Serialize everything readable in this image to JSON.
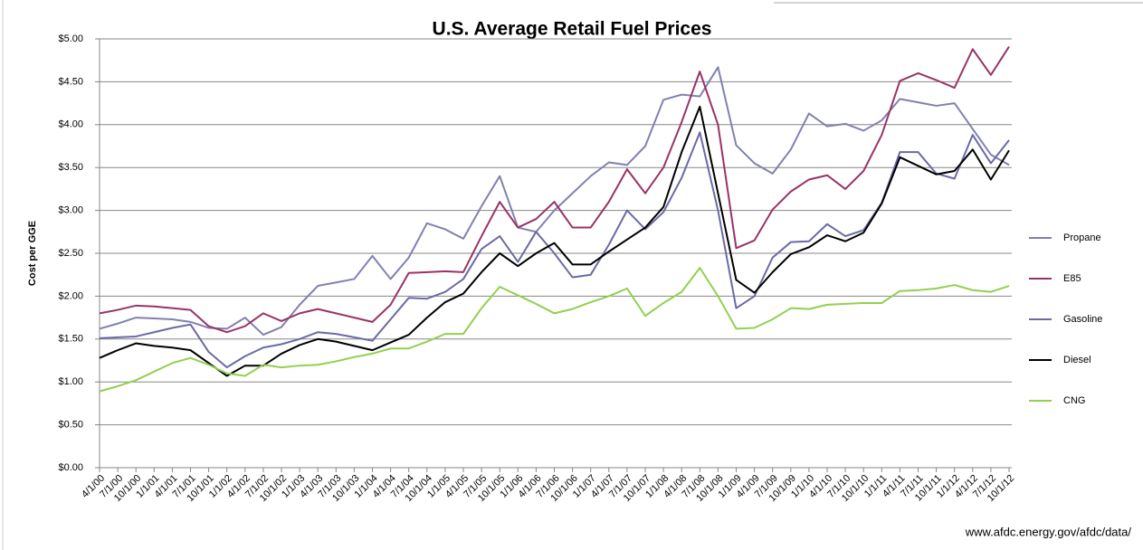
{
  "chart_data": {
    "type": "line",
    "title": "U.S. Average Retail Fuel Prices",
    "y_label": "Cost per GGE",
    "source": "www.afdc.energy.gov/afdc/data/",
    "categories": [
      "4/1/00",
      "7/1/00",
      "10/1/00",
      "1/1/01",
      "4/1/01",
      "7/1/01",
      "10/1/01",
      "1/1/02",
      "4/1/02",
      "7/1/02",
      "10/1/02",
      "1/1/03",
      "4/1/03",
      "7/1/03",
      "10/1/03",
      "1/1/04",
      "4/1/04",
      "7/1/04",
      "10/1/04",
      "1/1/05",
      "4/1/05",
      "7/1/05",
      "10/1/05",
      "1/1/06",
      "4/1/06",
      "7/1/06",
      "10/1/06",
      "1/1/07",
      "4/1/07",
      "7/1/07",
      "10/1/07",
      "1/1/08",
      "4/1/08",
      "7/1/08",
      "10/1/08",
      "1/1/09",
      "4/1/09",
      "7/1/09",
      "10/1/09",
      "1/1/10",
      "4/1/10",
      "7/1/10",
      "10/1/10",
      "1/1/11",
      "4/1/11",
      "7/1/11",
      "10/1/11",
      "1/1/12",
      "4/1/12",
      "7/1/12",
      "10/1/12"
    ],
    "series": [
      {
        "name": "Propane",
        "color": "#8080b2",
        "values": [
          1.62,
          1.68,
          1.75,
          1.74,
          1.73,
          1.7,
          1.63,
          1.62,
          1.75,
          1.55,
          1.64,
          1.9,
          2.12,
          2.16,
          2.2,
          2.47,
          2.2,
          2.45,
          2.85,
          2.78,
          2.67,
          3.05,
          3.4,
          2.8,
          2.75,
          3.0,
          3.2,
          3.4,
          3.56,
          3.53,
          3.75,
          4.29,
          4.35,
          4.33,
          4.67,
          3.76,
          3.55,
          3.43,
          3.71,
          4.13,
          3.98,
          4.01,
          3.93,
          4.05,
          4.3,
          4.26,
          4.22,
          4.25,
          3.95,
          3.65,
          3.53
        ]
      },
      {
        "name": "E85",
        "color": "#993366",
        "values": [
          1.8,
          1.84,
          1.89,
          1.88,
          1.86,
          1.84,
          1.65,
          1.58,
          1.65,
          1.8,
          1.71,
          1.8,
          1.85,
          1.8,
          1.75,
          1.7,
          1.9,
          2.27,
          2.28,
          2.29,
          2.28,
          2.7,
          3.1,
          2.8,
          2.9,
          3.1,
          2.8,
          2.8,
          3.1,
          3.48,
          3.2,
          3.5,
          4.03,
          4.62,
          4.0,
          2.56,
          2.65,
          3.01,
          3.22,
          3.36,
          3.41,
          3.25,
          3.46,
          3.88,
          4.51,
          4.6,
          4.52,
          4.43,
          4.88,
          4.58,
          4.91
        ]
      },
      {
        "name": "Gasoline",
        "color": "#6a6aa6",
        "values": [
          1.51,
          1.52,
          1.53,
          1.58,
          1.63,
          1.67,
          1.35,
          1.17,
          1.3,
          1.4,
          1.44,
          1.5,
          1.58,
          1.56,
          1.52,
          1.48,
          1.73,
          1.98,
          1.97,
          2.05,
          2.2,
          2.55,
          2.7,
          2.4,
          2.75,
          2.5,
          2.22,
          2.25,
          2.6,
          3.0,
          2.78,
          2.98,
          3.38,
          3.91,
          3.0,
          1.86,
          2.0,
          2.45,
          2.63,
          2.64,
          2.84,
          2.7,
          2.77,
          3.09,
          3.68,
          3.68,
          3.43,
          3.37,
          3.88,
          3.55,
          3.82
        ]
      },
      {
        "name": "Diesel",
        "color": "#000000",
        "values": [
          1.28,
          1.37,
          1.45,
          1.42,
          1.4,
          1.37,
          1.22,
          1.07,
          1.19,
          1.19,
          1.33,
          1.43,
          1.5,
          1.47,
          1.42,
          1.37,
          1.46,
          1.55,
          1.75,
          1.93,
          2.03,
          2.28,
          2.5,
          2.35,
          2.5,
          2.62,
          2.37,
          2.37,
          2.52,
          2.66,
          2.8,
          3.04,
          3.68,
          4.21,
          3.2,
          2.19,
          2.04,
          2.28,
          2.49,
          2.57,
          2.71,
          2.64,
          2.74,
          3.08,
          3.62,
          3.52,
          3.42,
          3.46,
          3.71,
          3.36,
          3.7
        ]
      },
      {
        "name": "CNG",
        "color": "#92d050",
        "values": [
          0.89,
          0.95,
          1.02,
          1.12,
          1.22,
          1.28,
          1.2,
          1.1,
          1.07,
          1.2,
          1.17,
          1.19,
          1.2,
          1.24,
          1.29,
          1.33,
          1.39,
          1.39,
          1.47,
          1.56,
          1.56,
          1.86,
          2.11,
          2.01,
          1.91,
          1.8,
          1.85,
          1.93,
          2.0,
          2.09,
          1.77,
          1.92,
          2.05,
          2.33,
          2.0,
          1.62,
          1.63,
          1.73,
          1.86,
          1.85,
          1.9,
          1.91,
          1.92,
          1.92,
          2.06,
          2.07,
          2.09,
          2.13,
          2.07,
          2.05,
          2.12
        ]
      }
    ],
    "ylim": [
      0,
      5
    ],
    "yticks": [
      {
        "value": 0,
        "label": "$0.00"
      },
      {
        "value": 0.5,
        "label": "$0.50"
      },
      {
        "value": 1,
        "label": "$1.00"
      },
      {
        "value": 1.5,
        "label": "$1.50"
      },
      {
        "value": 2,
        "label": "$2.00"
      },
      {
        "value": 2.5,
        "label": "$2.50"
      },
      {
        "value": 3,
        "label": "$3.00"
      },
      {
        "value": 3.5,
        "label": "$3.50"
      },
      {
        "value": 4,
        "label": "$4.00"
      },
      {
        "value": 4.5,
        "label": "$4.50"
      },
      {
        "value": 5,
        "label": "$5.00"
      }
    ],
    "grid": true,
    "legend": "right"
  }
}
